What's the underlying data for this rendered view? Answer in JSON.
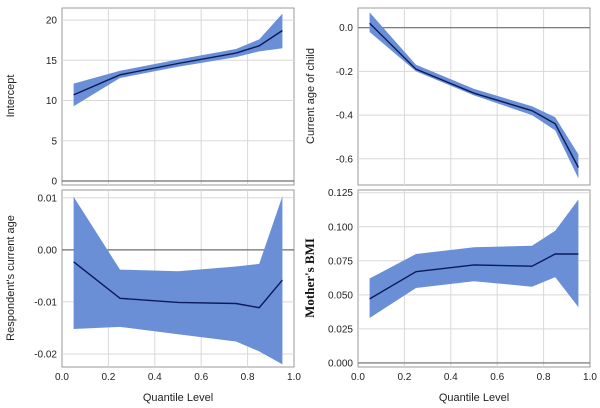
{
  "chart_data": [
    {
      "type": "line",
      "ylabel": "Intercept",
      "xlabel": "",
      "xlim": [
        0,
        1
      ],
      "ylim": [
        -0.5,
        21.5
      ],
      "yticks": [
        0,
        5,
        10,
        15,
        20
      ],
      "xticks": [],
      "reference_line": 0,
      "grid": true,
      "series": [
        {
          "x": [
            0.05,
            0.25,
            0.5,
            0.75,
            0.85,
            0.95
          ],
          "estimate": [
            10.7,
            13.2,
            14.6,
            15.9,
            16.8,
            18.7
          ],
          "lower": [
            9.3,
            12.8,
            14.2,
            15.4,
            16.1,
            16.5
          ],
          "upper": [
            12.1,
            13.7,
            15.1,
            16.4,
            17.6,
            20.8
          ]
        }
      ]
    },
    {
      "type": "line",
      "ylabel": "Current age of child",
      "xlabel": "",
      "xlim": [
        0,
        1
      ],
      "ylim": [
        -0.72,
        0.09
      ],
      "yticks": [
        0.0,
        -0.2,
        -0.4,
        -0.6
      ],
      "ytick_labels": [
        "0.0",
        "-0.2",
        "-0.4",
        "-0.6"
      ],
      "xticks": [],
      "reference_line": 0,
      "grid": true,
      "series": [
        {
          "x": [
            0.05,
            0.25,
            0.5,
            0.75,
            0.85,
            0.95
          ],
          "estimate": [
            0.02,
            -0.19,
            -0.3,
            -0.38,
            -0.44,
            -0.64
          ],
          "lower": [
            -0.02,
            -0.2,
            -0.31,
            -0.4,
            -0.47,
            -0.69
          ],
          "upper": [
            0.07,
            -0.17,
            -0.28,
            -0.36,
            -0.41,
            -0.58
          ]
        }
      ]
    },
    {
      "type": "line",
      "ylabel": "Respondent's current age",
      "xlabel": "Quantile Level",
      "xlim": [
        0,
        1
      ],
      "ylim": [
        -0.0225,
        0.0115
      ],
      "yticks": [
        0.01,
        0.0,
        -0.01,
        -0.02
      ],
      "ytick_labels": [
        "0.01",
        "0.00",
        "-0.01",
        "-0.02"
      ],
      "xticks": [
        0.0,
        0.2,
        0.4,
        0.6,
        0.8,
        1.0
      ],
      "xtick_labels": [
        "0.0",
        "0.2",
        "0.4",
        "0.6",
        "0.8",
        "1.0"
      ],
      "reference_line": 0,
      "grid": true,
      "series": [
        {
          "x": [
            0.05,
            0.25,
            0.5,
            0.75,
            0.85,
            0.95
          ],
          "estimate": [
            -0.0023,
            -0.0093,
            -0.0101,
            -0.0103,
            -0.0111,
            -0.0058
          ],
          "lower": [
            -0.0152,
            -0.0148,
            -0.0162,
            -0.0176,
            -0.0195,
            -0.022
          ],
          "upper": [
            0.0102,
            -0.0038,
            -0.0041,
            -0.0032,
            -0.0027,
            0.0103
          ]
        }
      ]
    },
    {
      "type": "line",
      "ylabel": "Mother's BMI",
      "xlabel": "Quantile Level",
      "xlim": [
        0,
        1
      ],
      "ylim": [
        -0.003,
        0.127
      ],
      "yticks": [
        0.0,
        0.025,
        0.05,
        0.075,
        0.1,
        0.125
      ],
      "ytick_labels": [
        "0.000",
        "0.025",
        "0.050",
        "0.075",
        "0.100",
        "0.125"
      ],
      "xticks": [
        0.0,
        0.2,
        0.4,
        0.6,
        0.8,
        1.0
      ],
      "xtick_labels": [
        "0.0",
        "0.2",
        "0.4",
        "0.6",
        "0.8",
        "1.0"
      ],
      "reference_line": 0,
      "grid": true,
      "series": [
        {
          "x": [
            0.05,
            0.25,
            0.5,
            0.75,
            0.85,
            0.95
          ],
          "estimate": [
            0.047,
            0.067,
            0.072,
            0.071,
            0.08,
            0.08
          ],
          "lower": [
            0.033,
            0.055,
            0.06,
            0.056,
            0.063,
            0.041
          ],
          "upper": [
            0.062,
            0.08,
            0.085,
            0.086,
            0.097,
            0.12
          ]
        }
      ]
    }
  ],
  "colors": {
    "band": "#6a8fd6",
    "line": "#0a1a5c",
    "reference": "#6e6e6e",
    "grid": "#d8d8d8",
    "frame": "#9a9a9a"
  }
}
